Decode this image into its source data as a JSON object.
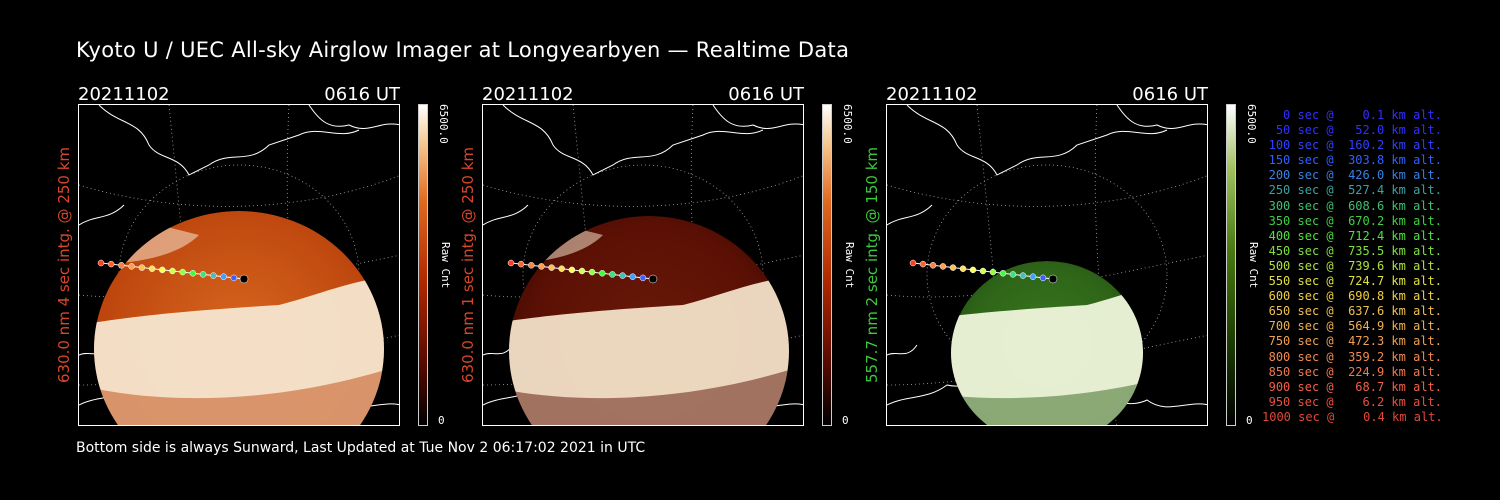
{
  "title": "Kyoto U / UEC All-sky Airglow Imager at Longyearbyen — Realtime Data",
  "footer": "Bottom side is always Sunward, Last Updated at Tue Nov  2 06:17:02 2021 in UTC",
  "panels": [
    {
      "date": "20211102",
      "time": "0616 UT",
      "ylabel": "630.0 nm 4 sec intg. @ 250 km",
      "ylabel_color": "#d8462a",
      "cbar_max": "6500.0",
      "cbar_min": "0",
      "cbar_unit": "Raw Cnt",
      "scheme": "red"
    },
    {
      "date": "20211102",
      "time": "0616 UT",
      "ylabel": "630.0 nm 1 sec intg. @ 250 km",
      "ylabel_color": "#d8462a",
      "cbar_max": "6500.0",
      "cbar_min": "0",
      "cbar_unit": "Raw Cnt",
      "scheme": "darkred"
    },
    {
      "date": "20211102",
      "time": "0616 UT",
      "ylabel": "557.7 nm 2 sec intg. @ 150 km",
      "ylabel_color": "#3cc83c",
      "cbar_max": "6500.0",
      "cbar_min": "0",
      "cbar_unit": "Raw Cnt",
      "scheme": "green"
    }
  ],
  "legend": [
    {
      "text": "0 sec @    0.1 km alt.",
      "color": "#3030ff"
    },
    {
      "text": "50 sec @   52.0 km alt.",
      "color": "#3030ff"
    },
    {
      "text": "100 sec @  160.2 km alt.",
      "color": "#3040ff"
    },
    {
      "text": "150 sec @  303.8 km alt.",
      "color": "#3060ff"
    },
    {
      "text": "200 sec @  426.0 km alt.",
      "color": "#3a80e0"
    },
    {
      "text": "250 sec @  527.4 km alt.",
      "color": "#40a0a0"
    },
    {
      "text": "300 sec @  608.6 km alt.",
      "color": "#40c070"
    },
    {
      "text": "350 sec @  670.2 km alt.",
      "color": "#40d040"
    },
    {
      "text": "400 sec @  712.4 km alt.",
      "color": "#50e040"
    },
    {
      "text": "450 sec @  735.5 km alt.",
      "color": "#80e040"
    },
    {
      "text": "500 sec @  739.6 km alt.",
      "color": "#b0e040"
    },
    {
      "text": "550 sec @  724.7 km alt.",
      "color": "#e0e040"
    },
    {
      "text": "600 sec @  690.8 km alt.",
      "color": "#f0d040"
    },
    {
      "text": "650 sec @  637.6 km alt.",
      "color": "#f0c050"
    },
    {
      "text": "700 sec @  564.9 km alt.",
      "color": "#f0b050"
    },
    {
      "text": "750 sec @  472.3 km alt.",
      "color": "#f0a050"
    },
    {
      "text": "800 sec @  359.2 km alt.",
      "color": "#f08a50"
    },
    {
      "text": "850 sec @  224.9 km alt.",
      "color": "#f07850"
    },
    {
      "text": "900 sec @   68.7 km alt.",
      "color": "#f06048"
    },
    {
      "text": "950 sec @    6.2 km alt.",
      "color": "#e85040"
    },
    {
      "text": "1000 sec @    0.4 km alt.",
      "color": "#e04838"
    }
  ]
}
